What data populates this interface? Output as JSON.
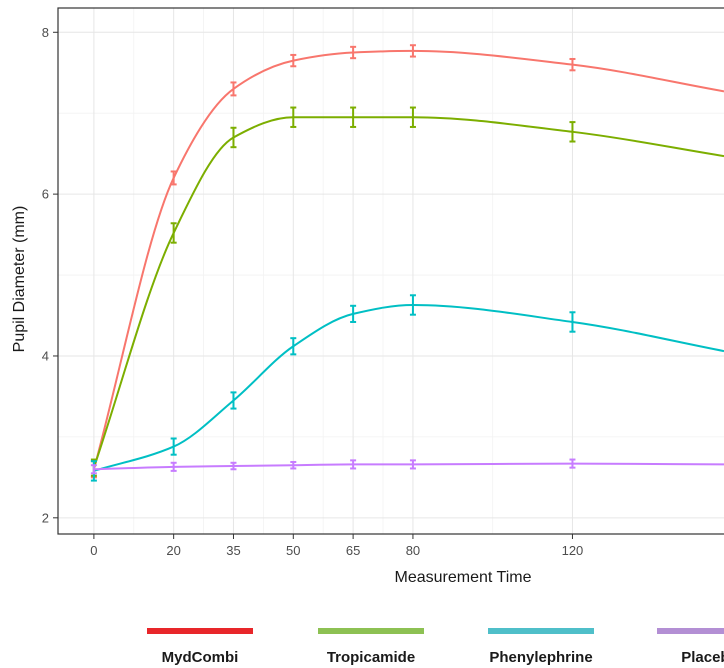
{
  "chart_data": {
    "type": "line",
    "xlabel": "Measurement Time",
    "ylabel": "Pupil Diameter (mm)",
    "x_ticks": [
      0,
      20,
      35,
      50,
      65,
      80,
      120
    ],
    "y_ticks": [
      2,
      4,
      6,
      8
    ],
    "xlim": [
      -9,
      158
    ],
    "ylim": [
      1.8,
      8.3
    ],
    "grid": true,
    "legend_position": "bottom",
    "series": [
      {
        "name": "MydCombi",
        "color": "#f8766d",
        "legend_color": "#e8262a",
        "x": [
          0,
          20,
          35,
          50,
          65,
          80,
          120
        ],
        "y": [
          2.6,
          6.2,
          7.3,
          7.65,
          7.75,
          7.77,
          7.6
        ],
        "err": [
          0.1,
          0.08,
          0.08,
          0.07,
          0.07,
          0.07,
          0.07
        ],
        "curve_end": 7.27
      },
      {
        "name": "Tropicamide",
        "color": "#7cae00",
        "legend_color": "#8dc153",
        "x": [
          0,
          20,
          35,
          50,
          65,
          80,
          120
        ],
        "y": [
          2.62,
          5.52,
          6.7,
          6.95,
          6.95,
          6.95,
          6.77
        ],
        "err": [
          0.1,
          0.12,
          0.12,
          0.12,
          0.12,
          0.12,
          0.12
        ],
        "curve_end": 6.47
      },
      {
        "name": "Phenylephrine",
        "color": "#00bfc4",
        "legend_color": "#4fbfc9",
        "x": [
          0,
          20,
          35,
          50,
          65,
          80,
          120
        ],
        "y": [
          2.58,
          2.88,
          3.45,
          4.12,
          4.52,
          4.63,
          4.42
        ],
        "err": [
          0.12,
          0.1,
          0.1,
          0.1,
          0.1,
          0.12,
          0.12
        ],
        "curve_end": 4.06
      },
      {
        "name": "Placebo",
        "color": "#c77cff",
        "legend_color": "#b38fd4",
        "x": [
          0,
          20,
          35,
          50,
          65,
          80,
          120
        ],
        "y": [
          2.6,
          2.63,
          2.64,
          2.65,
          2.66,
          2.66,
          2.67
        ],
        "err": [
          0.05,
          0.05,
          0.04,
          0.04,
          0.05,
          0.05,
          0.05
        ],
        "curve_end": 2.66
      }
    ]
  }
}
